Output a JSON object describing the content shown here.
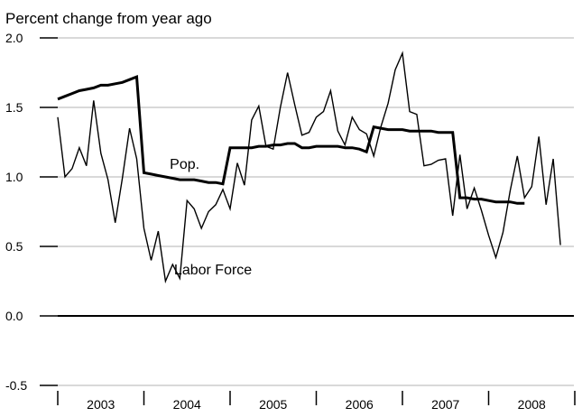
{
  "chart_data": {
    "type": "line",
    "title": "",
    "ylabel": "Percent change from year ago",
    "xlabel": "",
    "ylim": [
      -0.5,
      2.0
    ],
    "yticks": [
      -0.5,
      0.0,
      0.5,
      1.0,
      1.5,
      2.0
    ],
    "ytick_labels": [
      "-0.5",
      "0.0",
      "0.5",
      "1.0",
      "1.5",
      "2.0"
    ],
    "x_year_labels": [
      "2003",
      "2004",
      "2005",
      "2006",
      "2007",
      "2008"
    ],
    "grid": true,
    "annotations": [
      {
        "text": "Pop.",
        "x": 2004.3,
        "y": 1.06
      },
      {
        "text": "Labor Force",
        "x": 2004.35,
        "y": 0.3
      }
    ],
    "series": [
      {
        "name": "Pop.",
        "style": "thick",
        "color": "#000000",
        "values": [
          1.56,
          1.58,
          1.6,
          1.62,
          1.63,
          1.64,
          1.66,
          1.66,
          1.67,
          1.68,
          1.7,
          1.72,
          1.03,
          1.02,
          1.01,
          1.0,
          0.99,
          0.98,
          0.98,
          0.98,
          0.97,
          0.96,
          0.96,
          0.95,
          1.21,
          1.21,
          1.21,
          1.21,
          1.22,
          1.22,
          1.23,
          1.23,
          1.24,
          1.24,
          1.21,
          1.21,
          1.22,
          1.22,
          1.22,
          1.22,
          1.21,
          1.21,
          1.2,
          1.18,
          1.36,
          1.35,
          1.34,
          1.34,
          1.34,
          1.33,
          1.33,
          1.33,
          1.33,
          1.32,
          1.32,
          1.32,
          0.85,
          0.85,
          0.84,
          0.84,
          0.83,
          0.82,
          0.82,
          0.82,
          0.81,
          0.81
        ]
      },
      {
        "name": "Labor Force",
        "style": "thin",
        "color": "#000000",
        "values": [
          1.43,
          1.0,
          1.06,
          1.21,
          1.08,
          1.55,
          1.17,
          0.98,
          0.67,
          0.99,
          1.35,
          1.13,
          0.63,
          0.4,
          0.61,
          0.25,
          0.37,
          0.27,
          0.83,
          0.77,
          0.63,
          0.75,
          0.8,
          0.91,
          0.77,
          1.1,
          0.94,
          1.41,
          1.51,
          1.22,
          1.2,
          1.5,
          1.75,
          1.52,
          1.3,
          1.32,
          1.43,
          1.47,
          1.62,
          1.33,
          1.23,
          1.43,
          1.34,
          1.31,
          1.15,
          1.36,
          1.53,
          1.77,
          1.89,
          1.47,
          1.45,
          1.08,
          1.09,
          1.12,
          1.13,
          0.72,
          1.16,
          0.77,
          0.92,
          0.76,
          0.58,
          0.42,
          0.6,
          0.9,
          1.15,
          0.85,
          0.93,
          1.29,
          0.8,
          1.13,
          0.51
        ]
      }
    ]
  }
}
